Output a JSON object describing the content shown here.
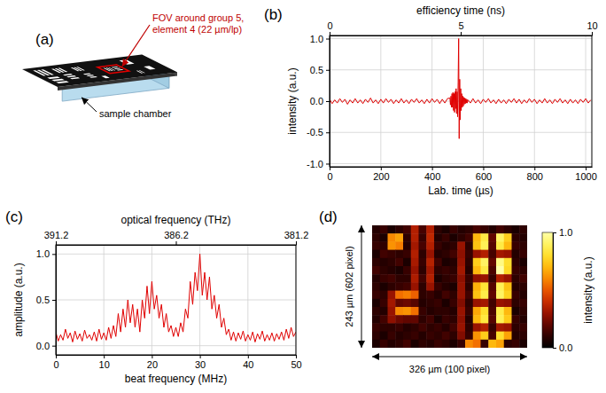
{
  "chart_data": [
    {
      "type": "diagram",
      "panel": "(a)",
      "annotations": [
        "FOV around group 5, element 4 (22 µm/lp)",
        "sample chamber"
      ]
    },
    {
      "type": "line",
      "panel": "(b)",
      "x2label": "efficiency time (ns)",
      "xlabel": "Lab. time (µs)",
      "ylabel": "intensity (a.u.)",
      "xlim": [
        0,
        1024
      ],
      "xticks": [
        0,
        200,
        400,
        600,
        800,
        1000
      ],
      "x2lim": [
        0,
        10
      ],
      "x2ticks": [
        0,
        5,
        10
      ],
      "ylim": [
        -1.05,
        1.05
      ],
      "yticks": [
        {
          "value": -1,
          "label": "-1.0"
        },
        {
          "value": -0.5,
          "label": "-0.5"
        },
        {
          "value": 0,
          "label": "0.0"
        },
        {
          "value": 0.5,
          "label": "0.5"
        },
        {
          "value": 1,
          "label": "1.0"
        }
      ],
      "grid": true,
      "color": "#e00000",
      "x": [
        0,
        10,
        20,
        30,
        40,
        50,
        60,
        70,
        80,
        90,
        100,
        110,
        120,
        130,
        140,
        150,
        160,
        170,
        180,
        190,
        200,
        210,
        220,
        230,
        240,
        250,
        260,
        270,
        280,
        290,
        300,
        310,
        320,
        330,
        340,
        350,
        360,
        370,
        380,
        390,
        400,
        410,
        420,
        430,
        440,
        450,
        460,
        470,
        472,
        474,
        476,
        478,
        480,
        482,
        484,
        486,
        488,
        490,
        492,
        494,
        496,
        498,
        500,
        502,
        504,
        506,
        508,
        510,
        512,
        514,
        516,
        518,
        520,
        522,
        524,
        526,
        528,
        530,
        532,
        534,
        536,
        538,
        540,
        550,
        560,
        570,
        580,
        590,
        600,
        610,
        620,
        630,
        640,
        650,
        660,
        670,
        680,
        690,
        700,
        710,
        720,
        730,
        740,
        750,
        760,
        770,
        780,
        790,
        800,
        810,
        820,
        830,
        840,
        850,
        860,
        870,
        880,
        890,
        900,
        910,
        920,
        930,
        940,
        950,
        960,
        970,
        980,
        990,
        1000,
        1010,
        1020
      ],
      "values": [
        0.03,
        -0.04,
        0.02,
        -0.03,
        0.04,
        -0.02,
        0.03,
        -0.05,
        0.02,
        -0.03,
        0.04,
        -0.03,
        0.02,
        -0.04,
        0.03,
        -0.02,
        0.05,
        -0.03,
        0.02,
        -0.04,
        0.03,
        -0.03,
        0.04,
        -0.02,
        0.03,
        -0.04,
        0.02,
        -0.03,
        0.04,
        -0.03,
        0.02,
        -0.04,
        0.03,
        -0.02,
        0.04,
        -0.03,
        0.02,
        -0.04,
        0.03,
        -0.03,
        0.04,
        -0.02,
        0.03,
        -0.04,
        0.03,
        -0.03,
        0.04,
        0.05,
        -0.06,
        0.08,
        -0.1,
        0.12,
        -0.1,
        0.14,
        -0.15,
        0.12,
        -0.18,
        0.15,
        -0.12,
        0.2,
        -0.2,
        0.15,
        -0.25,
        0.3,
        1.0,
        -0.6,
        0.35,
        -0.3,
        0.2,
        -0.15,
        0.12,
        -0.1,
        0.08,
        -0.08,
        0.06,
        -0.05,
        0.05,
        -0.04,
        0.04,
        -0.03,
        0.03,
        -0.03,
        0.02,
        -0.03,
        0.04,
        -0.03,
        0.02,
        -0.04,
        0.03,
        -0.02,
        0.04,
        -0.03,
        0.02,
        -0.04,
        0.03,
        -0.03,
        0.02,
        -0.04,
        0.03,
        -0.02,
        0.04,
        -0.03,
        0.03,
        -0.04,
        0.02,
        -0.03,
        0.04,
        -0.02,
        0.03,
        -0.04,
        0.02,
        -0.03,
        0.04,
        -0.03,
        0.02,
        -0.04,
        0.03,
        -0.02,
        0.04,
        -0.03,
        0.02,
        -0.04,
        0.03,
        -0.03,
        0.02,
        -0.04,
        0.03,
        -0.02,
        0.04,
        -0.03,
        0.02
      ]
    },
    {
      "type": "line",
      "panel": "(c)",
      "x2label": "optical frequency (THz)",
      "xlabel": "beat frequency (MHz)",
      "ylabel": "amplitude (a.u.)",
      "xlim": [
        0,
        50
      ],
      "xticks": [
        0,
        10,
        20,
        30,
        40,
        50
      ],
      "x2lim": [
        391.2,
        381.2
      ],
      "x2ticks": [
        391.2,
        386.2,
        381.2
      ],
      "ylim": [
        -0.1,
        1.1
      ],
      "yticks": [
        {
          "value": 0,
          "label": "0.0"
        },
        {
          "value": 0.5,
          "label": "0.5"
        },
        {
          "value": 1,
          "label": "1.0"
        }
      ],
      "grid": true,
      "color": "#e00000",
      "x": [
        0,
        0.5,
        1,
        1.5,
        2,
        2.5,
        3,
        3.5,
        4,
        4.5,
        5,
        5.5,
        6,
        6.5,
        7,
        7.5,
        8,
        8.5,
        9,
        9.5,
        10,
        10.5,
        11,
        11.5,
        12,
        12.5,
        13,
        13.5,
        14,
        14.5,
        15,
        15.5,
        16,
        16.5,
        17,
        17.5,
        18,
        18.5,
        19,
        19.5,
        20,
        20.5,
        21,
        21.5,
        22,
        22.5,
        23,
        23.5,
        24,
        24.5,
        25,
        25.5,
        26,
        26.5,
        27,
        27.5,
        28,
        28.5,
        29,
        29.5,
        30,
        30.5,
        31,
        31.5,
        32,
        32.5,
        33,
        33.5,
        34,
        34.5,
        35,
        35.5,
        36,
        36.5,
        37,
        37.5,
        38,
        38.5,
        39,
        39.5,
        40,
        40.5,
        41,
        41.5,
        42,
        42.5,
        43,
        43.5,
        44,
        44.5,
        45,
        45.5,
        46,
        46.5,
        47,
        47.5,
        48,
        48.5,
        49,
        49.5,
        50
      ],
      "values": [
        0.15,
        0.05,
        0.12,
        0.06,
        0.18,
        0.08,
        0.14,
        0.04,
        0.16,
        0.07,
        0.13,
        0.05,
        0.17,
        0.08,
        0.12,
        0.06,
        0.15,
        0.05,
        0.18,
        0.07,
        0.14,
        0.06,
        0.2,
        0.08,
        0.22,
        0.1,
        0.35,
        0.15,
        0.4,
        0.2,
        0.5,
        0.25,
        0.45,
        0.2,
        0.4,
        0.15,
        0.5,
        0.3,
        0.65,
        0.35,
        0.7,
        0.4,
        0.55,
        0.3,
        0.45,
        0.2,
        0.35,
        0.15,
        0.22,
        0.1,
        0.2,
        0.1,
        0.25,
        0.15,
        0.4,
        0.3,
        0.7,
        0.45,
        0.8,
        0.6,
        1.0,
        0.55,
        0.8,
        0.5,
        0.75,
        0.4,
        0.55,
        0.3,
        0.45,
        0.2,
        0.3,
        0.12,
        0.18,
        0.06,
        0.15,
        0.05,
        0.14,
        0.07,
        0.16,
        0.05,
        0.12,
        0.06,
        0.15,
        0.04,
        0.13,
        0.07,
        0.16,
        0.05,
        0.12,
        0.06,
        0.14,
        0.05,
        0.13,
        0.07,
        0.15,
        0.06,
        0.18,
        0.08,
        0.2,
        0.1,
        0.15
      ]
    },
    {
      "type": "heatmap",
      "panel": "(d)",
      "xlabel": "326 µm (100 pixel)",
      "ylabel": "243 µm (602 pixel)",
      "tick_labels": false,
      "zlim": [
        0,
        1
      ],
      "zticks": [
        {
          "value": 0,
          "label": "0.0"
        },
        {
          "value": 1,
          "label": "1.0"
        }
      ],
      "colorbar_label": "intensity (a.u.)",
      "cells": [
        [
          0.08,
          0.12,
          0.06,
          0.1,
          0.14,
          0.35,
          0.15,
          0.35,
          0.1,
          0.06,
          0.12,
          0.08,
          0.1,
          0.15,
          0.12,
          0.08,
          0.14,
          0.1,
          0.06,
          0.1
        ],
        [
          0.1,
          0.06,
          0.6,
          0.65,
          0.1,
          0.35,
          0.12,
          0.38,
          0.08,
          0.12,
          0.06,
          0.1,
          0.14,
          0.7,
          0.85,
          0.2,
          0.9,
          0.75,
          0.1,
          0.08
        ],
        [
          0.12,
          0.1,
          0.62,
          0.58,
          0.08,
          0.32,
          0.15,
          0.35,
          0.12,
          0.08,
          0.1,
          0.3,
          0.1,
          0.72,
          0.88,
          0.18,
          0.85,
          0.7,
          0.12,
          0.1
        ],
        [
          0.06,
          0.14,
          0.12,
          0.1,
          0.12,
          0.35,
          0.1,
          0.3,
          0.08,
          0.1,
          0.14,
          0.28,
          0.12,
          0.3,
          0.35,
          0.15,
          0.32,
          0.3,
          0.08,
          0.12
        ],
        [
          0.1,
          0.08,
          0.1,
          0.14,
          0.06,
          0.33,
          0.12,
          0.36,
          0.14,
          0.06,
          0.08,
          0.3,
          0.1,
          0.75,
          0.9,
          0.2,
          0.95,
          0.8,
          0.1,
          0.06
        ],
        [
          0.14,
          0.1,
          0.08,
          0.06,
          0.12,
          0.3,
          0.1,
          0.32,
          0.1,
          0.12,
          0.1,
          0.32,
          0.08,
          0.7,
          0.85,
          0.16,
          1.0,
          0.78,
          0.12,
          0.1
        ],
        [
          0.08,
          0.12,
          0.14,
          0.1,
          0.1,
          0.34,
          0.14,
          0.35,
          0.06,
          0.1,
          0.12,
          0.28,
          0.12,
          0.28,
          0.3,
          0.12,
          0.35,
          0.3,
          0.1,
          0.14
        ],
        [
          0.1,
          0.06,
          0.1,
          0.12,
          0.14,
          0.3,
          0.1,
          0.3,
          0.12,
          0.08,
          0.06,
          0.3,
          0.1,
          0.68,
          0.82,
          0.18,
          0.88,
          0.72,
          0.08,
          0.1
        ],
        [
          0.12,
          0.1,
          0.3,
          0.55,
          0.58,
          0.52,
          0.1,
          0.12,
          0.08,
          0.14,
          0.1,
          0.3,
          0.14,
          0.72,
          0.86,
          0.2,
          0.9,
          0.76,
          0.12,
          0.08
        ],
        [
          0.06,
          0.12,
          0.32,
          0.2,
          0.22,
          0.18,
          0.08,
          0.1,
          0.12,
          0.06,
          0.12,
          0.26,
          0.1,
          0.3,
          0.32,
          0.14,
          0.3,
          0.28,
          0.1,
          0.12
        ],
        [
          0.1,
          0.08,
          0.3,
          0.6,
          0.62,
          0.55,
          0.12,
          0.08,
          0.1,
          0.1,
          0.08,
          0.3,
          0.12,
          0.66,
          0.8,
          0.16,
          0.86,
          0.7,
          0.06,
          0.1
        ],
        [
          0.08,
          0.14,
          0.28,
          0.22,
          0.2,
          0.2,
          0.1,
          0.14,
          0.06,
          0.12,
          0.1,
          0.28,
          0.08,
          0.7,
          0.84,
          0.18,
          0.88,
          0.74,
          0.12,
          0.08
        ],
        [
          0.12,
          0.1,
          0.1,
          0.12,
          0.08,
          0.1,
          0.14,
          0.1,
          0.12,
          0.08,
          0.14,
          0.3,
          0.1,
          0.3,
          0.35,
          0.12,
          0.32,
          0.3,
          0.1,
          0.12
        ],
        [
          0.1,
          0.06,
          0.12,
          0.08,
          0.1,
          0.12,
          0.08,
          0.12,
          0.1,
          0.14,
          0.1,
          0.26,
          0.12,
          0.62,
          0.75,
          0.15,
          0.8,
          0.65,
          0.08,
          0.1
        ],
        [
          0.06,
          0.12,
          0.08,
          0.1,
          0.14,
          0.06,
          0.1,
          0.08,
          0.12,
          0.1,
          0.06,
          0.12,
          0.6,
          0.55,
          0.12,
          0.7,
          0.65,
          0.1,
          0.12,
          0.06
        ]
      ]
    }
  ]
}
